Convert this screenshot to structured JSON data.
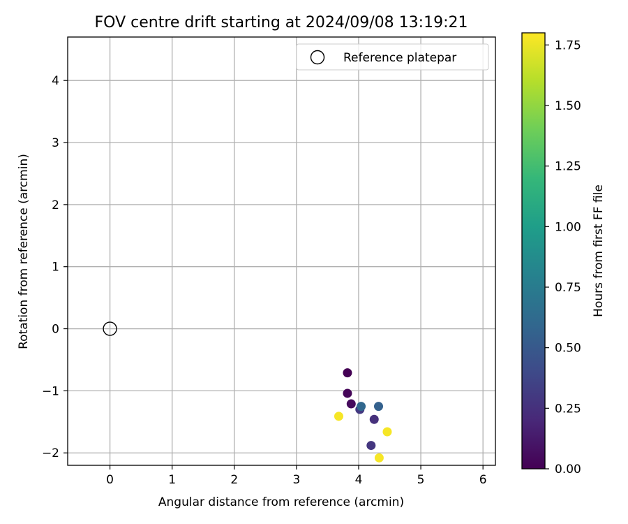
{
  "chart_data": {
    "type": "scatter",
    "title": "FOV centre drift starting at 2024/09/08 13:19:21",
    "xlabel": "Angular distance from reference (arcmin)",
    "ylabel": "Rotation from reference (arcmin)",
    "xlim": [
      -0.68,
      6.2
    ],
    "ylim": [
      -2.2,
      4.7
    ],
    "xticks": [
      0,
      1,
      2,
      3,
      4,
      5,
      6
    ],
    "yticks": [
      -2,
      -1,
      0,
      1,
      2,
      3,
      4
    ],
    "xtick_labels": [
      "0",
      "1",
      "2",
      "3",
      "4",
      "5",
      "6"
    ],
    "ytick_labels": [
      "−2",
      "−1",
      "0",
      "1",
      "2",
      "3",
      "4"
    ],
    "grid": true,
    "legend": {
      "placement": "top-right",
      "entries": [
        "Reference platepar"
      ]
    },
    "reference_point": {
      "x": 0,
      "y": 0,
      "marker": "open-circle"
    },
    "series": [
      {
        "x": [
          3.82,
          3.82,
          3.88,
          4.02,
          4.04,
          4.32,
          4.25,
          4.2,
          3.68,
          4.46,
          4.33
        ],
        "y": [
          -0.71,
          -1.04,
          -1.21,
          -1.3,
          -1.25,
          -1.25,
          -1.46,
          -1.88,
          -1.41,
          -1.66,
          -2.08
        ],
        "hours": [
          0.0,
          0.02,
          0.05,
          0.3,
          0.6,
          0.55,
          0.25,
          0.28,
          1.78,
          1.78,
          1.78
        ]
      }
    ],
    "colorbar": {
      "label": "Hours from first FF file",
      "colormap": "viridis",
      "range": [
        0,
        1.8
      ],
      "ticks": [
        0,
        0.25,
        0.5,
        0.75,
        1.0,
        1.25,
        1.5,
        1.75
      ],
      "tick_labels": [
        "0.00",
        "0.25",
        "0.50",
        "0.75",
        "1.00",
        "1.25",
        "1.50",
        "1.75"
      ]
    },
    "colors": {
      "grid": "#b0b0b0",
      "axes": "#000000",
      "viridis_stops": [
        "#440154",
        "#482878",
        "#3e4a89",
        "#31688e",
        "#26828e",
        "#1f9e89",
        "#35b779",
        "#6ece58",
        "#b5de2b",
        "#fde725"
      ]
    }
  }
}
